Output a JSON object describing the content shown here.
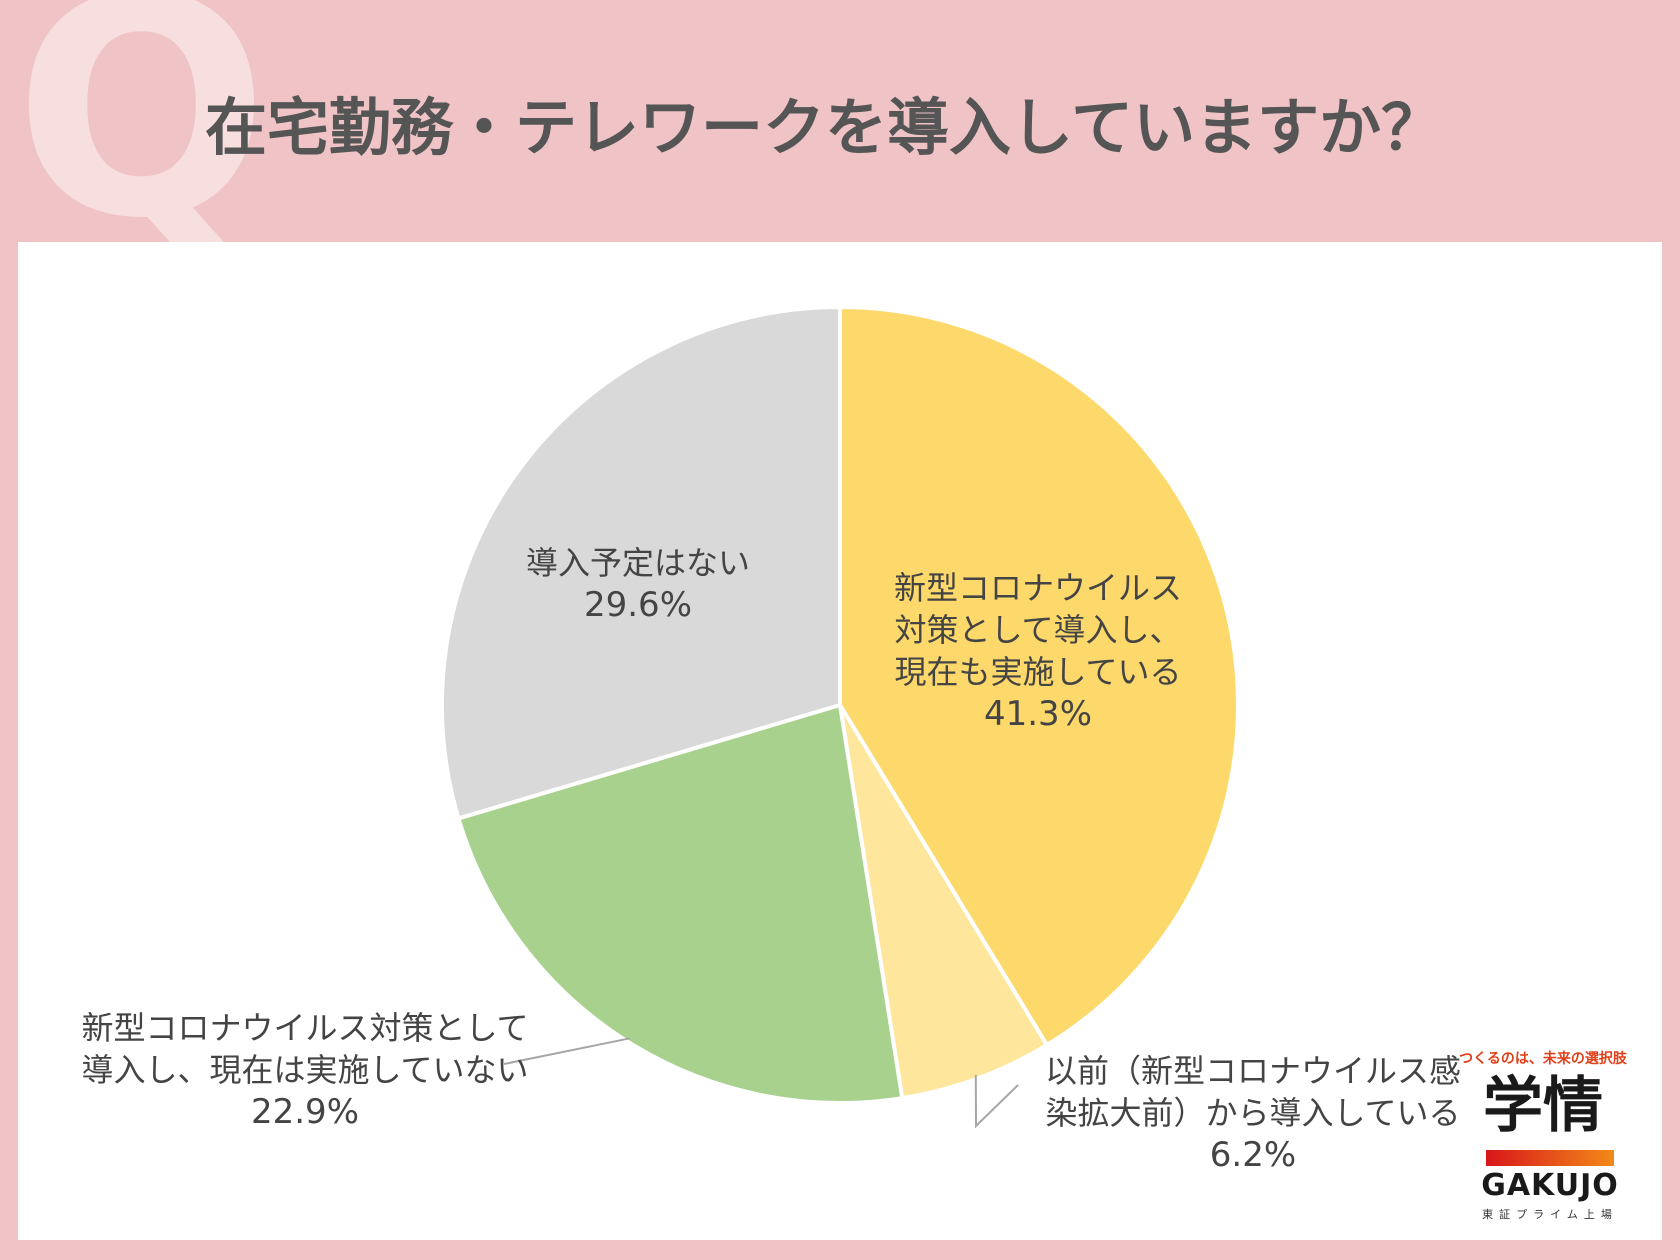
{
  "header": {
    "q_mark": "Q",
    "title": "在宅勤務・テレワークを導入していますか？"
  },
  "colors": {
    "background": "#f0c4c6",
    "panel": "#ffffff"
  },
  "chart_data": {
    "type": "pie",
    "start": "12 o'clock",
    "direction": "clockwise",
    "slices": [
      {
        "lines": [
          "新型コロナウイルス",
          "対策として導入し、",
          "現在も実施している"
        ],
        "pct": "41.3%",
        "value": 41.3,
        "color": "#fdd86b"
      },
      {
        "lines": [
          "以前（新型コロナウイルス感",
          "染拡大前）から導入している"
        ],
        "pct": "6.2%",
        "value": 6.2,
        "color": "#fee69d"
      },
      {
        "lines": [
          "新型コロナウイルス対策として",
          "導入し、現在は実施していない"
        ],
        "pct": "22.9%",
        "value": 22.9,
        "color": "#a9d18e"
      },
      {
        "lines": [
          "導入予定はない"
        ],
        "pct": "29.6%",
        "value": 29.6,
        "color": "#d9d9d9"
      }
    ]
  },
  "logo": {
    "tagline": "つくるのは、未来の選択肢",
    "name": "学情",
    "roman": "GAKUJO",
    "sub": "東証プライム上場"
  }
}
